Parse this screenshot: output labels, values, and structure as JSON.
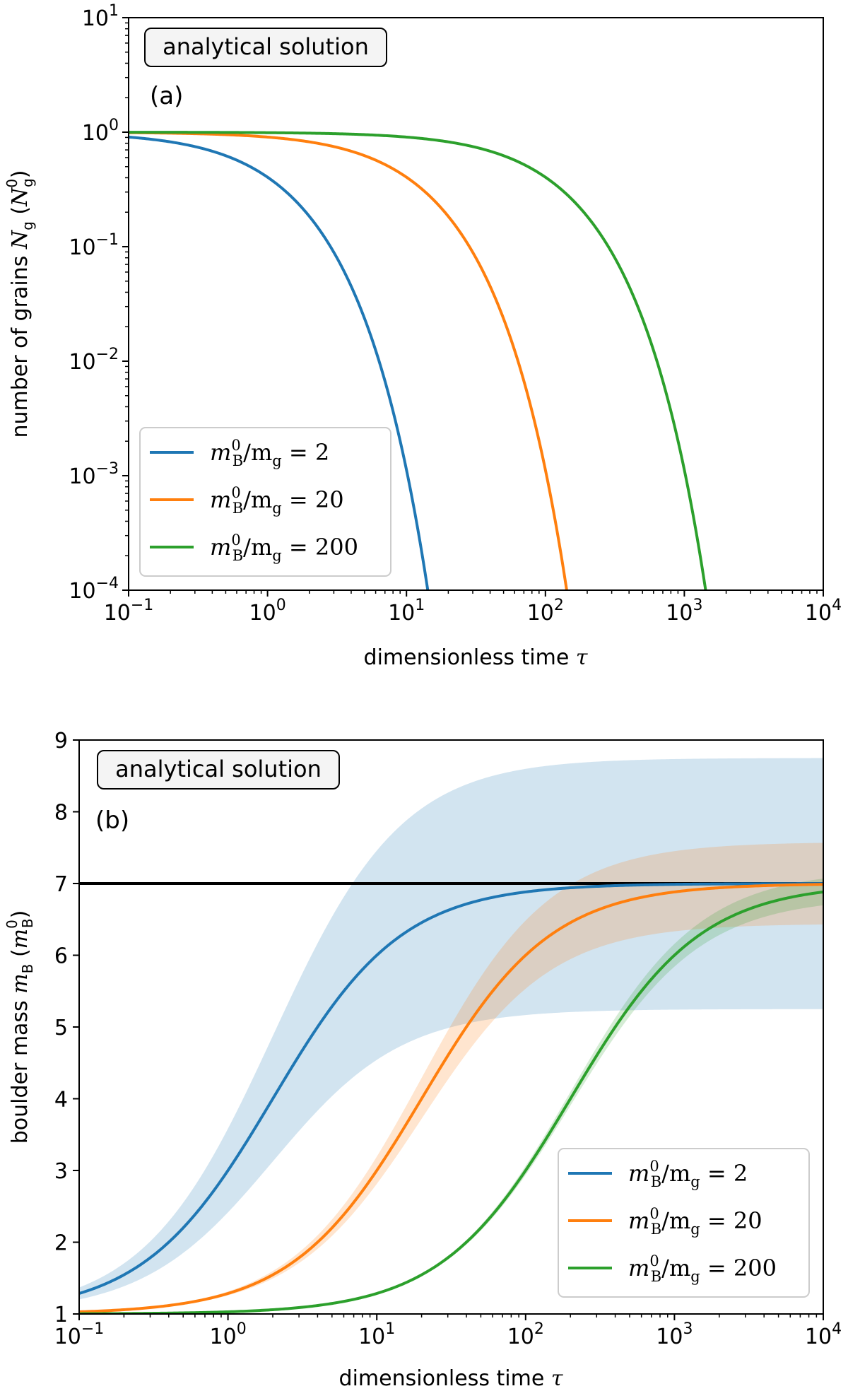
{
  "chart_data": [
    {
      "type": "line",
      "panel_label": "(a)",
      "annotation": "analytical solution",
      "xlabel": "dimensionless time τ",
      "ylabel": "number of grains N_g (N_g^0)",
      "xscale": "log",
      "yscale": "log",
      "xlim": [
        0.1,
        10000
      ],
      "ylim": [
        0.0001,
        10
      ],
      "x_ticks": [
        {
          "base": "10",
          "exp": "−1",
          "value": 0.1
        },
        {
          "base": "10",
          "exp": "0",
          "value": 1
        },
        {
          "base": "10",
          "exp": "1",
          "value": 10
        },
        {
          "base": "10",
          "exp": "2",
          "value": 100
        },
        {
          "base": "10",
          "exp": "3",
          "value": 1000
        },
        {
          "base": "10",
          "exp": "4",
          "value": 10000
        }
      ],
      "y_ticks": [
        {
          "base": "10",
          "exp": "−4",
          "value": 0.0001
        },
        {
          "base": "10",
          "exp": "−3",
          "value": 0.001
        },
        {
          "base": "10",
          "exp": "−2",
          "value": 0.01
        },
        {
          "base": "10",
          "exp": "−1",
          "value": 0.1
        },
        {
          "base": "10",
          "exp": "0",
          "value": 1
        },
        {
          "base": "10",
          "exp": "1",
          "value": 10
        }
      ],
      "legend_position": "lower-left",
      "series": [
        {
          "name": "m_B^0/m_g = 2",
          "legend_value": "2",
          "color": "#1f77b4",
          "ratio": 2
        },
        {
          "name": "m_B^0/m_g = 20",
          "legend_value": "20",
          "color": "#ff7f0e",
          "ratio": 20
        },
        {
          "name": "m_B^0/m_g = 200",
          "legend_value": "200",
          "color": "#2ca02c",
          "ratio": 200
        }
      ]
    },
    {
      "type": "line",
      "panel_label": "(b)",
      "annotation": "analytical solution",
      "xlabel": "dimensionless time τ",
      "ylabel": "boulder mass m_B (m_B^0)",
      "xscale": "log",
      "yscale": "linear",
      "xlim": [
        0.1,
        10000
      ],
      "ylim": [
        1,
        9
      ],
      "x_ticks": [
        {
          "base": "10",
          "exp": "−1",
          "value": 0.1
        },
        {
          "base": "10",
          "exp": "0",
          "value": 1
        },
        {
          "base": "10",
          "exp": "1",
          "value": 10
        },
        {
          "base": "10",
          "exp": "2",
          "value": 100
        },
        {
          "base": "10",
          "exp": "3",
          "value": 1000
        },
        {
          "base": "10",
          "exp": "4",
          "value": 10000
        }
      ],
      "y_ticks": [
        "1",
        "2",
        "3",
        "4",
        "5",
        "6",
        "7",
        "8",
        "9"
      ],
      "reference_line": {
        "y": 7,
        "color": "#000000"
      },
      "legend_position": "lower-right",
      "asymptote": 7,
      "series": [
        {
          "name": "m_B^0/m_g = 2",
          "legend_value": "2",
          "color": "#1f77b4",
          "ratio": 2,
          "band_upper_max": 8.75,
          "band_lower_max": 5.25
        },
        {
          "name": "m_B^0/m_g = 20",
          "legend_value": "20",
          "color": "#ff7f0e",
          "ratio": 20,
          "band_upper_max": 7.58,
          "band_lower_max": 6.44
        },
        {
          "name": "m_B^0/m_g = 200",
          "legend_value": "200",
          "color": "#2ca02c",
          "ratio": 200,
          "band_upper_max": 7.19,
          "band_lower_max": 6.81
        }
      ]
    }
  ]
}
